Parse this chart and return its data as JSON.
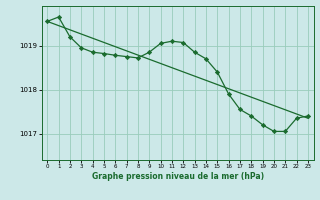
{
  "bg_color": "#cce8e8",
  "plot_bg_color": "#cce8e8",
  "grid_color": "#99ccbb",
  "line_color": "#1a6b2e",
  "marker_color": "#1a6b2e",
  "xlabel": "Graphe pression niveau de la mer (hPa)",
  "yticks": [
    1017,
    1018,
    1019
  ],
  "xlim": [
    -0.5,
    23.5
  ],
  "ylim": [
    1016.4,
    1019.9
  ],
  "series1_x": [
    0,
    1,
    2,
    3,
    4,
    5,
    6,
    7,
    8,
    9,
    10,
    11,
    12,
    13,
    14,
    15,
    16,
    17,
    18,
    19,
    20,
    21,
    22,
    23
  ],
  "series1_y": [
    1019.55,
    1019.65,
    1019.2,
    1018.95,
    1018.85,
    1018.82,
    1018.78,
    1018.75,
    1018.72,
    1018.85,
    1019.05,
    1019.1,
    1019.07,
    1018.85,
    1018.7,
    1018.4,
    1017.9,
    1017.55,
    1017.4,
    1017.2,
    1017.05,
    1017.05,
    1017.35,
    1017.4
  ],
  "trend_x": [
    0,
    23
  ],
  "trend_y": [
    1019.55,
    1017.35
  ]
}
